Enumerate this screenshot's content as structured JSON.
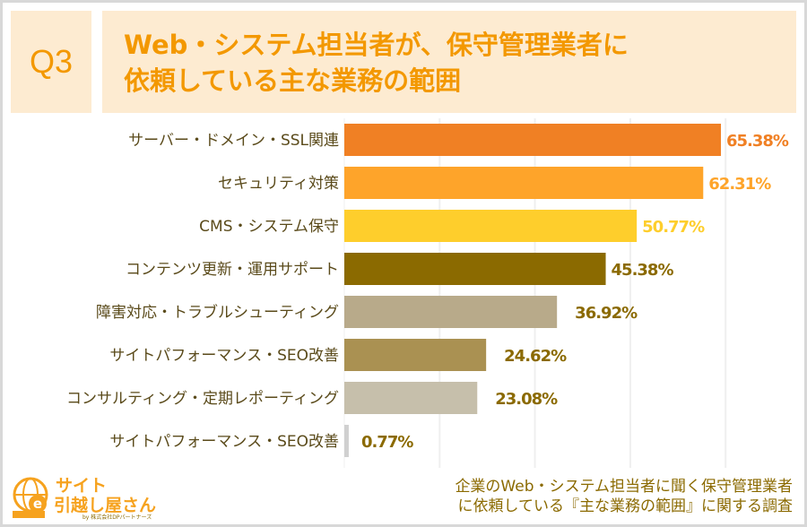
{
  "header": {
    "question": "Q3",
    "title_lines": [
      "Web・システム担当者が、保守管理業者に",
      "依頼している主な業務の範囲"
    ]
  },
  "chart_data": {
    "type": "bar",
    "orientation": "horizontal",
    "categories": [
      "サーバー・ドメイン・SSL関連",
      "セキュリティ対策",
      "CMS・システム保守",
      "コンテンツ更新・運用サポート",
      "障害対応・トラブルシューティング",
      "サイトパフォーマンス・SEO改善",
      "コンサルティング・定期レポーティング",
      "サイトパフォーマンス・SEO改善"
    ],
    "values": [
      65.38,
      62.31,
      50.77,
      45.38,
      36.92,
      24.62,
      23.08,
      0.77
    ],
    "value_labels": [
      "65.38%",
      "62.31%",
      "50.77%",
      "45.38%",
      "36.92%",
      "24.62%",
      "23.08%",
      "0.77%"
    ],
    "bar_colors": [
      "#f08024",
      "#fea42a",
      "#fece2c",
      "#8b6a00",
      "#b8aa8a",
      "#aa9152",
      "#c6bfab",
      "#d0d0d0"
    ],
    "label_colors": [
      "#f08024",
      "#fea42a",
      "#fece2c",
      "#8b6a00",
      "#8b6a00",
      "#8b6a00",
      "#8b6a00",
      "#8b6a00"
    ],
    "xlim": [
      0,
      80
    ],
    "grid": true
  },
  "logo": {
    "text_line1": "サイト",
    "text_line2": "引越し屋さん",
    "byline": "by 株式会社DPパートナーズ"
  },
  "source": {
    "lines": [
      "企業のWeb・システム担当者に聞く保守管理業者",
      "に依頼している『主な業務の範囲』に関する調査"
    ]
  }
}
